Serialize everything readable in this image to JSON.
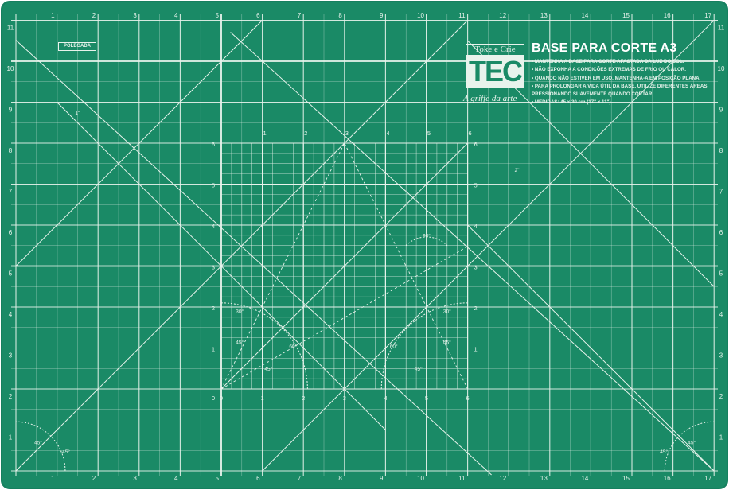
{
  "mat": {
    "colors": {
      "background": "#1a8a66",
      "border": "#16805f",
      "line": "#e8f3ec"
    },
    "top_scale": [
      "1",
      "2",
      "3",
      "4",
      "5",
      "6",
      "7",
      "8",
      "9",
      "10",
      "11",
      "12",
      "13",
      "14",
      "15",
      "16",
      "17"
    ],
    "bottom_scale": [
      "1",
      "2",
      "3",
      "4",
      "5",
      "6",
      "7",
      "8",
      "9",
      "10",
      "11",
      "12",
      "13",
      "14",
      "15",
      "16",
      "17"
    ],
    "left_scale": [
      "1",
      "2",
      "3",
      "4",
      "5",
      "6",
      "7",
      "8",
      "9",
      "10",
      "11"
    ],
    "right_scale": [
      "1",
      "2",
      "3",
      "4",
      "5",
      "6",
      "7",
      "8",
      "9",
      "10",
      "11"
    ],
    "corner_label": "0"
  },
  "inner_grid": {
    "top_scale": [
      "1",
      "2",
      "3",
      "4",
      "5",
      "6"
    ],
    "bottom_scale": [
      "0",
      "1",
      "2",
      "3",
      "4",
      "5",
      "6"
    ],
    "left_scale": [
      "1",
      "2",
      "3",
      "4",
      "5",
      "6"
    ],
    "right_scale": [
      "1",
      "2",
      "3",
      "4",
      "5",
      "6"
    ]
  },
  "angles": {
    "top": "90°",
    "left_30": "30°",
    "left_45": "45°",
    "left_60": "60°",
    "left_45_low": "45°",
    "right_30": "30°",
    "right_45": "45°",
    "right_60": "60°",
    "right_45_low": "45°",
    "corner_bl_45": "45°",
    "corner_bl_45b": "45°",
    "corner_br_45": "45°",
    "corner_br_45b": "45°",
    "one_inch": "1\"",
    "two_inch": "2\""
  },
  "brand": {
    "logo_top": "Toke e Crie",
    "logo_main": "TEC",
    "tagline": "A griffe da arte",
    "title": "BASE PARA CORTE A3",
    "notes": [
      "• MANTENHA A BASE PARA CORTE AFASTADA DA LUZ DO SOL.",
      "• NÃO EXPONHA A CONDIÇÕES EXTREMAS DE FRIO OU CALOR.",
      "• QUANDO NÃO ESTIVER EM USO, MANTENHA-A EM POSIÇÃO PLANA.",
      "• PARA PROLONGAR A VIDA ÚTIL DA BASE, UTILIZE DIFERENTES ÁREAS",
      "  PRESSIONANDO SUAVEMENTE QUANDO CORTAR.",
      "• MEDIDAS: 45 x 30 cm (17\" x 11\")"
    ]
  },
  "unit_tag": "POLEGADA"
}
